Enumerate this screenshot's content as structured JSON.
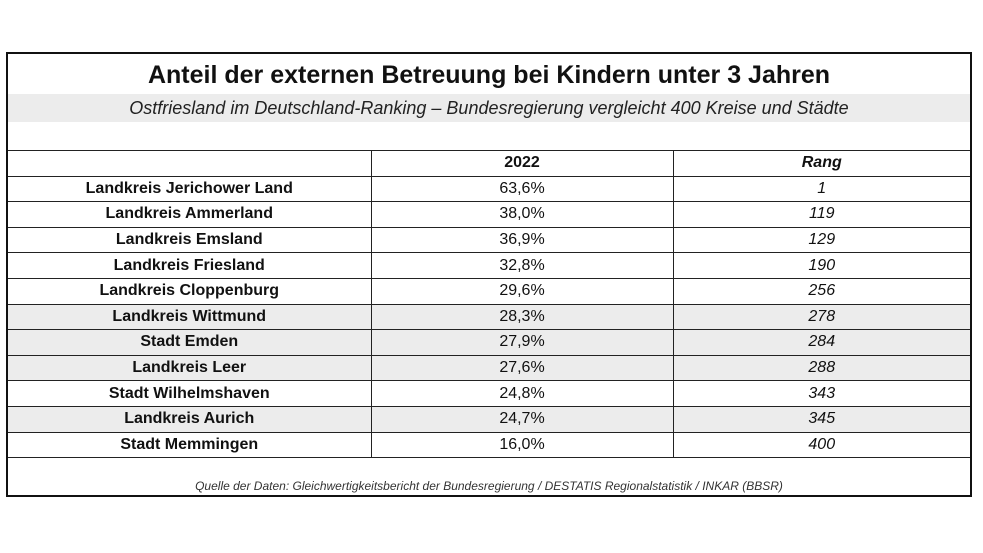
{
  "title": "Anteil der externen Betreuung bei Kindern unter 3 Jahren",
  "subtitle": "Ostfriesland im Deutschland-Ranking – Bundesregierung vergleicht 400 Kreise und Städte",
  "table": {
    "headers": {
      "region": "",
      "year": "2022",
      "rank": "Rang"
    },
    "rows": [
      {
        "region": "Landkreis Jerichower Land",
        "value": "63,6%",
        "rank": "1",
        "shaded": false
      },
      {
        "region": "Landkreis Ammerland",
        "value": "38,0%",
        "rank": "119",
        "shaded": false
      },
      {
        "region": "Landkreis Emsland",
        "value": "36,9%",
        "rank": "129",
        "shaded": false
      },
      {
        "region": "Landkreis Friesland",
        "value": "32,8%",
        "rank": "190",
        "shaded": false
      },
      {
        "region": "Landkreis Cloppenburg",
        "value": "29,6%",
        "rank": "256",
        "shaded": false
      },
      {
        "region": "Landkreis Wittmund",
        "value": "28,3%",
        "rank": "278",
        "shaded": true
      },
      {
        "region": "Stadt Emden",
        "value": "27,9%",
        "rank": "284",
        "shaded": true
      },
      {
        "region": "Landkreis Leer",
        "value": "27,6%",
        "rank": "288",
        "shaded": true
      },
      {
        "region": "Stadt Wilhelmshaven",
        "value": "24,8%",
        "rank": "343",
        "shaded": false
      },
      {
        "region": "Landkreis Aurich",
        "value": "24,7%",
        "rank": "345",
        "shaded": true
      },
      {
        "region": "Stadt Memmingen",
        "value": "16,0%",
        "rank": "400",
        "shaded": false
      }
    ]
  },
  "source": "Quelle der Daten: Gleichwertigkeitsbericht der Bundesregierung / DESTATIS Regionalstatistik / INKAR (BBSR)",
  "colors": {
    "shade": "#ececec",
    "border": "#111111"
  }
}
